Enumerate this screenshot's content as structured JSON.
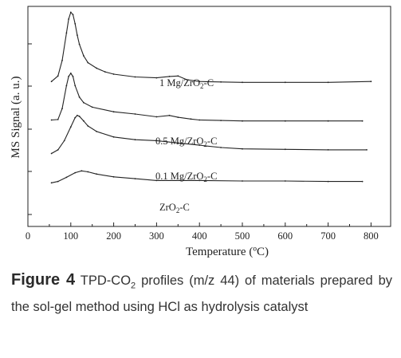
{
  "chart_data": {
    "type": "line",
    "title": "",
    "xlabel": "Temperature (ºC)",
    "ylabel": "MS Signal (a. u.)",
    "xlim": [
      0,
      830
    ],
    "xticks": [
      0,
      100,
      200,
      300,
      400,
      500,
      600,
      700,
      800
    ],
    "y_tick_labels": "none",
    "grid": false,
    "series": [
      {
        "label_main": "1 Mg/ZrO",
        "label_sub": "2",
        "label_tail": "-C",
        "x": [
          55,
          70,
          80,
          90,
          95,
          100,
          105,
          110,
          115,
          120,
          130,
          140,
          160,
          180,
          200,
          250,
          300,
          330,
          350,
          370,
          400,
          450,
          500,
          600,
          700,
          800
        ],
        "y": [
          1.04,
          1.16,
          1.5,
          2.1,
          2.4,
          2.55,
          2.5,
          2.3,
          2.05,
          1.85,
          1.6,
          1.45,
          1.33,
          1.25,
          1.2,
          1.14,
          1.12,
          1.15,
          1.16,
          1.08,
          1.04,
          1.03,
          1.02,
          1.02,
          1.02,
          1.04
        ]
      },
      {
        "label_main": "0.5 Mg/ZrO",
        "label_sub": "2",
        "label_tail": "-C",
        "x": [
          55,
          70,
          80,
          90,
          95,
          100,
          105,
          110,
          120,
          130,
          150,
          200,
          250,
          300,
          330,
          350,
          380,
          400,
          450,
          500,
          600,
          700,
          780
        ],
        "y": [
          0.2,
          0.21,
          0.45,
          0.95,
          1.15,
          1.22,
          1.15,
          0.95,
          0.7,
          0.58,
          0.48,
          0.38,
          0.33,
          0.27,
          0.3,
          0.26,
          0.22,
          0.2,
          0.19,
          0.18,
          0.18,
          0.18,
          0.18
        ]
      },
      {
        "label_main": "0.1 Mg/ZrO",
        "label_sub": "2",
        "label_tail": "-C",
        "x": [
          55,
          70,
          85,
          100,
          110,
          115,
          120,
          130,
          140,
          160,
          200,
          250,
          300,
          350,
          400,
          450,
          500,
          600,
          700,
          790
        ],
        "y": [
          -0.53,
          -0.45,
          -0.25,
          0.05,
          0.25,
          0.3,
          0.28,
          0.18,
          0.07,
          -0.05,
          -0.17,
          -0.23,
          -0.25,
          -0.3,
          -0.35,
          -0.4,
          -0.43,
          -0.44,
          -0.45,
          -0.45
        ]
      },
      {
        "label_main": "ZrO",
        "label_sub": "2",
        "label_tail": "-C",
        "x": [
          55,
          70,
          90,
          110,
          125,
          140,
          160,
          200,
          250,
          300,
          400,
          500,
          600,
          700,
          780
        ],
        "y": [
          -1.17,
          -1.14,
          -1.05,
          -0.95,
          -0.91,
          -0.93,
          -0.98,
          -1.04,
          -1.08,
          -1.12,
          -1.12,
          -1.13,
          -1.13,
          -1.14,
          -1.14
        ]
      }
    ]
  },
  "caption": {
    "figure_label": "Figure 4",
    "text_before_sub": "TPD-CO",
    "subscript": "2",
    "text_after_sub": " profiles (m/z 44) of materials prepared by the sol-gel method using HCl as hydrolysis catalyst"
  }
}
